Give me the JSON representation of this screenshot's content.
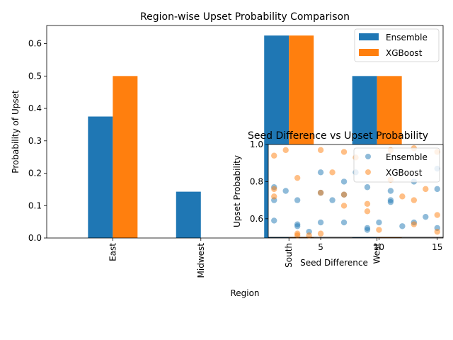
{
  "colors": {
    "ensemble": "#1f77b4",
    "xgboost": "#ff7f0e"
  },
  "chart_data": [
    {
      "type": "bar",
      "title": "Region-wise Upset Probability Comparison",
      "xlabel": "Region",
      "ylabel": "Probability of Upset",
      "categories": [
        "East",
        "Midwest",
        "South",
        "West"
      ],
      "series": [
        {
          "name": "Ensemble",
          "values": [
            0.375,
            0.143,
            0.625,
            0.5
          ]
        },
        {
          "name": "XGBoost",
          "values": [
            0.5,
            0.0,
            0.625,
            0.5
          ]
        }
      ],
      "ylim": [
        0,
        0.656
      ],
      "yticks": [
        "0.0",
        "0.1",
        "0.2",
        "0.3",
        "0.4",
        "0.5",
        "0.6"
      ],
      "legend": "top-right",
      "grid": false
    },
    {
      "type": "scatter",
      "title": "Seed Difference vs Upset Probability",
      "xlabel": "Seed Difference",
      "ylabel": "Upset Probability",
      "xlim": [
        0.5,
        15.5
      ],
      "ylim": [
        0.5,
        1.0
      ],
      "xticks": [
        "5",
        "10",
        "15"
      ],
      "yticks": [
        "0.6",
        "0.8",
        "1.0"
      ],
      "legend": "top-right",
      "grid": false,
      "series": [
        {
          "name": "Ensemble",
          "points": [
            [
              1,
              0.77
            ],
            [
              1,
              0.7
            ],
            [
              1,
              0.59
            ],
            [
              2,
              0.75
            ],
            [
              3,
              0.7
            ],
            [
              3,
              0.57
            ],
            [
              3,
              0.56
            ],
            [
              4,
              0.53
            ],
            [
              5,
              0.85
            ],
            [
              5,
              0.74
            ],
            [
              5,
              0.58
            ],
            [
              6,
              0.7
            ],
            [
              7,
              0.8
            ],
            [
              7,
              0.73
            ],
            [
              7,
              0.58
            ],
            [
              8,
              0.85
            ],
            [
              9,
              0.77
            ],
            [
              9,
              0.55
            ],
            [
              9,
              0.54
            ],
            [
              10,
              0.58
            ],
            [
              11,
              0.75
            ],
            [
              11,
              0.7
            ],
            [
              11,
              0.69
            ],
            [
              12,
              0.56
            ],
            [
              13,
              0.8
            ],
            [
              13,
              0.58
            ],
            [
              14,
              0.61
            ],
            [
              15,
              0.87
            ],
            [
              15,
              0.76
            ],
            [
              15,
              0.55
            ]
          ]
        },
        {
          "name": "XGBoost",
          "points": [
            [
              1,
              0.94
            ],
            [
              1,
              0.76
            ],
            [
              1,
              0.72
            ],
            [
              2,
              0.97
            ],
            [
              3,
              0.82
            ],
            [
              3,
              0.52
            ],
            [
              3,
              0.51
            ],
            [
              4,
              0.51
            ],
            [
              5,
              0.97
            ],
            [
              5,
              0.74
            ],
            [
              5,
              0.52
            ],
            [
              6,
              0.85
            ],
            [
              7,
              0.96
            ],
            [
              7,
              0.73
            ],
            [
              7,
              0.67
            ],
            [
              8,
              0.93
            ],
            [
              9,
              0.68
            ],
            [
              9,
              0.64
            ],
            [
              10,
              0.54
            ],
            [
              11,
              0.97
            ],
            [
              11,
              0.81
            ],
            [
              12,
              0.72
            ],
            [
              13,
              0.98
            ],
            [
              13,
              0.7
            ],
            [
              13,
              0.57
            ],
            [
              14,
              0.76
            ],
            [
              15,
              0.96
            ],
            [
              15,
              0.62
            ],
            [
              15,
              0.53
            ]
          ]
        }
      ]
    }
  ]
}
